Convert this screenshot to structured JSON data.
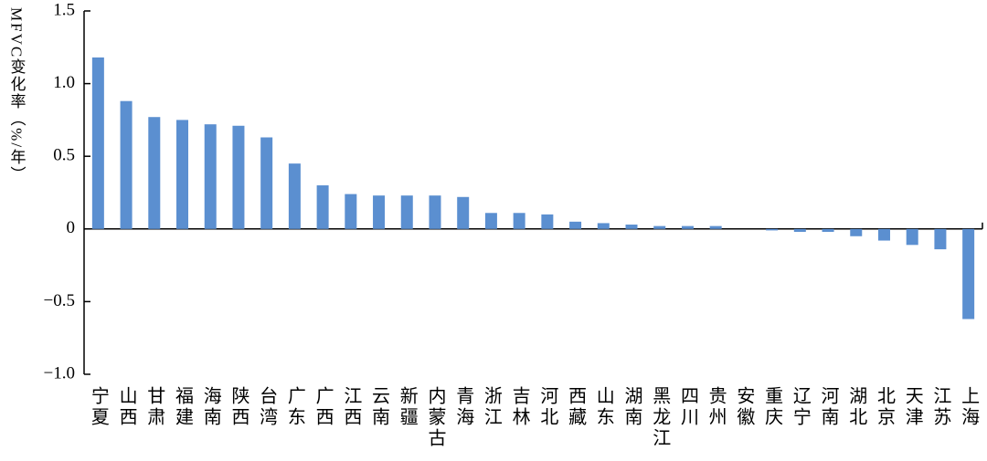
{
  "chart_data": {
    "type": "bar",
    "y_label": "MFVC变化率（%/年）",
    "categories": [
      "宁夏",
      "山西",
      "甘肃",
      "福建",
      "海南",
      "陕西",
      "台湾",
      "广东",
      "广西",
      "江西",
      "云南",
      "新疆",
      "内蒙古",
      "青海",
      "浙江",
      "吉林",
      "河北",
      "西藏",
      "山东",
      "湖南",
      "黑龙江",
      "四川",
      "贵州",
      "安徽",
      "重庆",
      "辽宁",
      "河南",
      "湖北",
      "北京",
      "天津",
      "江苏",
      "上海"
    ],
    "values": [
      1.18,
      0.88,
      0.77,
      0.75,
      0.72,
      0.71,
      0.63,
      0.45,
      0.3,
      0.24,
      0.23,
      0.23,
      0.23,
      0.22,
      0.11,
      0.11,
      0.1,
      0.05,
      0.04,
      0.03,
      0.02,
      0.02,
      0.02,
      0.0,
      -0.01,
      -0.02,
      -0.02,
      -0.05,
      -0.08,
      -0.11,
      -0.14,
      -0.62
    ],
    "color": "#5b8fd0",
    "ylim": [
      -1,
      1.5
    ],
    "yticks": [
      {
        "value": -1,
        "label": "−1.0"
      },
      {
        "value": -0.5,
        "label": "−0.5"
      },
      0,
      0.5,
      {
        "value": 1,
        "label": "1.0"
      },
      1.5
    ]
  }
}
